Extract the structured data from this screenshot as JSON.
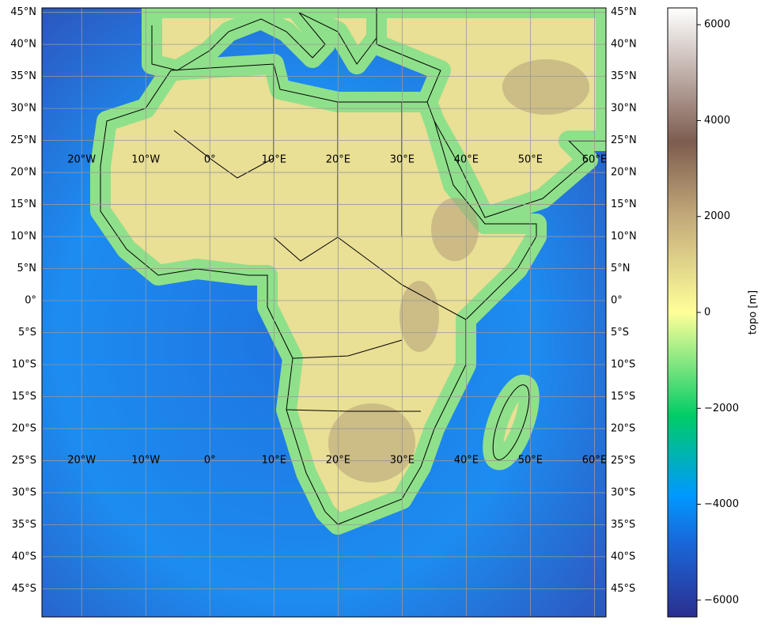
{
  "map": {
    "lonlim": [
      -26.2,
      61.8
    ],
    "latlim": [
      -49.4,
      45.7
    ],
    "lat_ticks": [
      {
        "value": 45,
        "label": "45°N"
      },
      {
        "value": 40,
        "label": "40°N"
      },
      {
        "value": 35,
        "label": "35°N"
      },
      {
        "value": 30,
        "label": "30°N"
      },
      {
        "value": 25,
        "label": "25°N"
      },
      {
        "value": 20,
        "label": "20°N"
      },
      {
        "value": 15,
        "label": "15°N"
      },
      {
        "value": 10,
        "label": "10°N"
      },
      {
        "value": 5,
        "label": "5°N"
      },
      {
        "value": 0,
        "label": "0°"
      },
      {
        "value": -5,
        "label": "5°S"
      },
      {
        "value": -10,
        "label": "10°S"
      },
      {
        "value": -15,
        "label": "15°S"
      },
      {
        "value": -20,
        "label": "20°S"
      },
      {
        "value": -25,
        "label": "25°S"
      },
      {
        "value": -30,
        "label": "30°S"
      },
      {
        "value": -35,
        "label": "35°S"
      },
      {
        "value": -40,
        "label": "40°S"
      },
      {
        "value": -45,
        "label": "45°S"
      }
    ],
    "lon_ticks": [
      {
        "value": -20,
        "label": "20°W"
      },
      {
        "value": -10,
        "label": "10°W"
      },
      {
        "value": 0,
        "label": "0°"
      },
      {
        "value": 10,
        "label": "10°E"
      },
      {
        "value": 20,
        "label": "20°E"
      },
      {
        "value": 30,
        "label": "30°E"
      },
      {
        "value": 40,
        "label": "40°E"
      },
      {
        "value": 50,
        "label": "50°E"
      },
      {
        "value": 60,
        "label": "60°E"
      }
    ],
    "colorbar": {
      "label": "topo [m]",
      "lim": [
        -6350,
        6350
      ],
      "ticks": [
        {
          "value": -6000,
          "label": "−6000"
        },
        {
          "value": -4000,
          "label": "−4000"
        },
        {
          "value": -2000,
          "label": "−2000"
        },
        0,
        2000,
        4000,
        6000
      ]
    }
  }
}
